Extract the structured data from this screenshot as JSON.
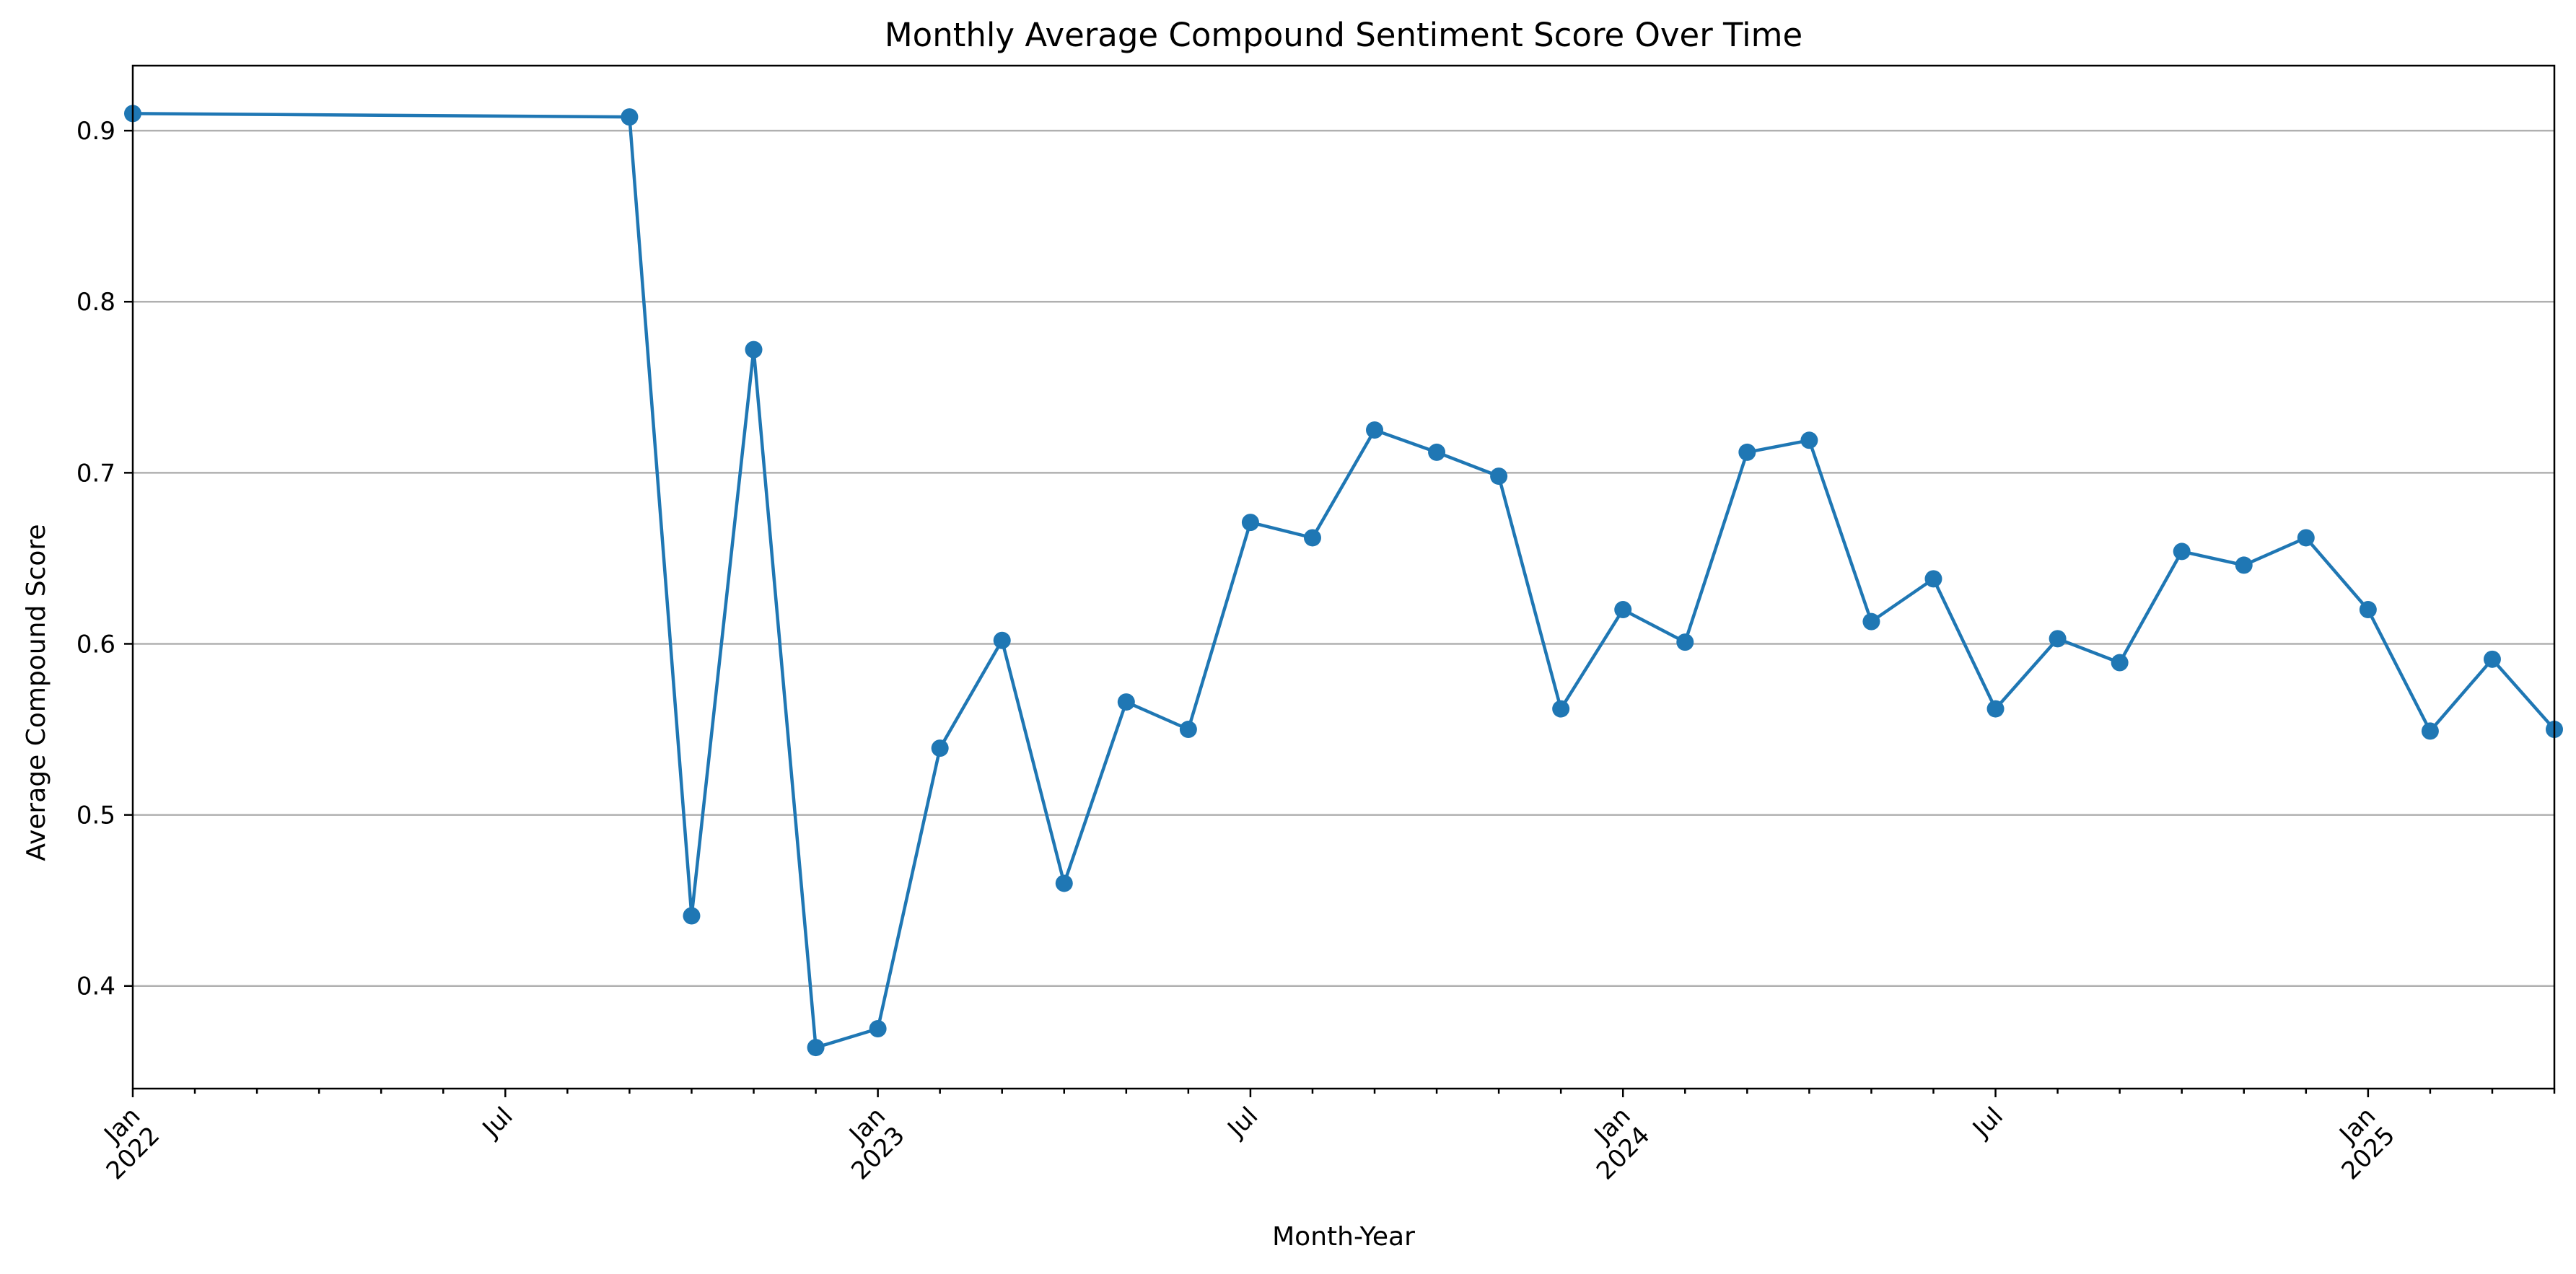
{
  "chart_data": {
    "type": "line",
    "title": "Monthly Average Compound Sentiment Score Over Time",
    "xlabel": "Month-Year",
    "ylabel": "Average Compound Score",
    "ylim": [
      0.34,
      0.938
    ],
    "xlim": [
      "2022-01",
      "2025-04"
    ],
    "grid": "horizontal",
    "legend": "none",
    "series": [
      {
        "color": "#1f77b4",
        "x": [
          "2022-01",
          "2022-09",
          "2022-10",
          "2022-11",
          "2022-12",
          "2023-01",
          "2023-02",
          "2023-03",
          "2023-04",
          "2023-05",
          "2023-06",
          "2023-07",
          "2023-08",
          "2023-09",
          "2023-10",
          "2023-11",
          "2023-12",
          "2024-01",
          "2024-02",
          "2024-03",
          "2024-04",
          "2024-05",
          "2024-06",
          "2024-07",
          "2024-08",
          "2024-09",
          "2024-10",
          "2024-11",
          "2024-12",
          "2025-01",
          "2025-02",
          "2025-03",
          "2025-04"
        ],
        "y": [
          0.91,
          0.908,
          0.441,
          0.772,
          0.364,
          0.375,
          0.539,
          0.602,
          0.46,
          0.566,
          0.55,
          0.671,
          0.662,
          0.725,
          0.712,
          0.698,
          0.562,
          0.62,
          0.601,
          0.712,
          0.719,
          0.613,
          0.638,
          0.562,
          0.603,
          0.589,
          0.654,
          0.646,
          0.662,
          0.62,
          0.549,
          0.591,
          0.55
        ]
      }
    ],
    "yticks": [
      {
        "value": 0.4,
        "label": "0.4"
      },
      {
        "value": 0.5,
        "label": "0.5"
      },
      {
        "value": 0.6,
        "label": "0.6"
      },
      {
        "value": 0.7,
        "label": "0.7"
      },
      {
        "value": 0.8,
        "label": "0.8"
      },
      {
        "value": 0.9,
        "label": "0.9"
      }
    ],
    "xticks": [
      {
        "date": "2022-01",
        "label": "Jan",
        "year": "2022"
      },
      {
        "date": "2022-07",
        "label": "Jul",
        "year": ""
      },
      {
        "date": "2023-01",
        "label": "Jan",
        "year": "2023"
      },
      {
        "date": "2023-07",
        "label": "Jul",
        "year": ""
      },
      {
        "date": "2024-01",
        "label": "Jan",
        "year": "2024"
      },
      {
        "date": "2024-07",
        "label": "Jul",
        "year": ""
      },
      {
        "date": "2025-01",
        "label": "Jan",
        "year": "2025"
      }
    ]
  }
}
